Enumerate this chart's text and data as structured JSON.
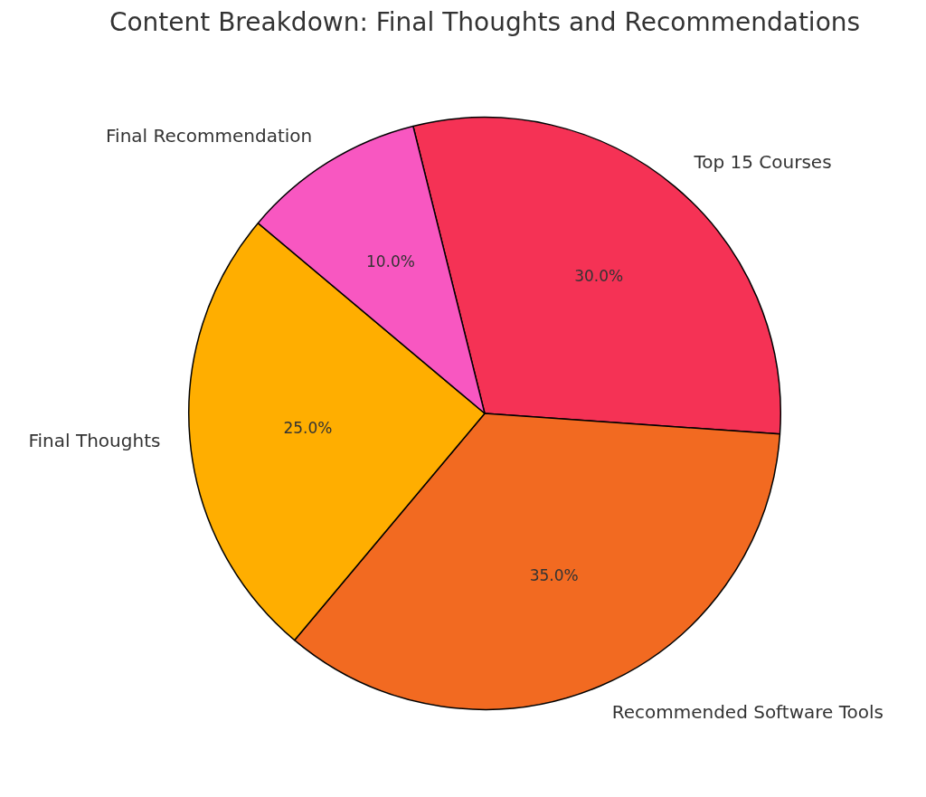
{
  "chart_data": {
    "type": "pie",
    "title": "Content Breakdown: Final Thoughts and Recommendations",
    "categories": [
      "Top 15 Courses",
      "Recommended Software Tools",
      "Final Thoughts",
      "Final Recommendation"
    ],
    "values": [
      30,
      35,
      25,
      10
    ],
    "colors": [
      "#f53255",
      "#f26a21",
      "#ffae00",
      "#f857c1"
    ],
    "value_labels": [
      "30.0%",
      "35.0%",
      "25.0%",
      "10.0%"
    ],
    "legend": false
  }
}
